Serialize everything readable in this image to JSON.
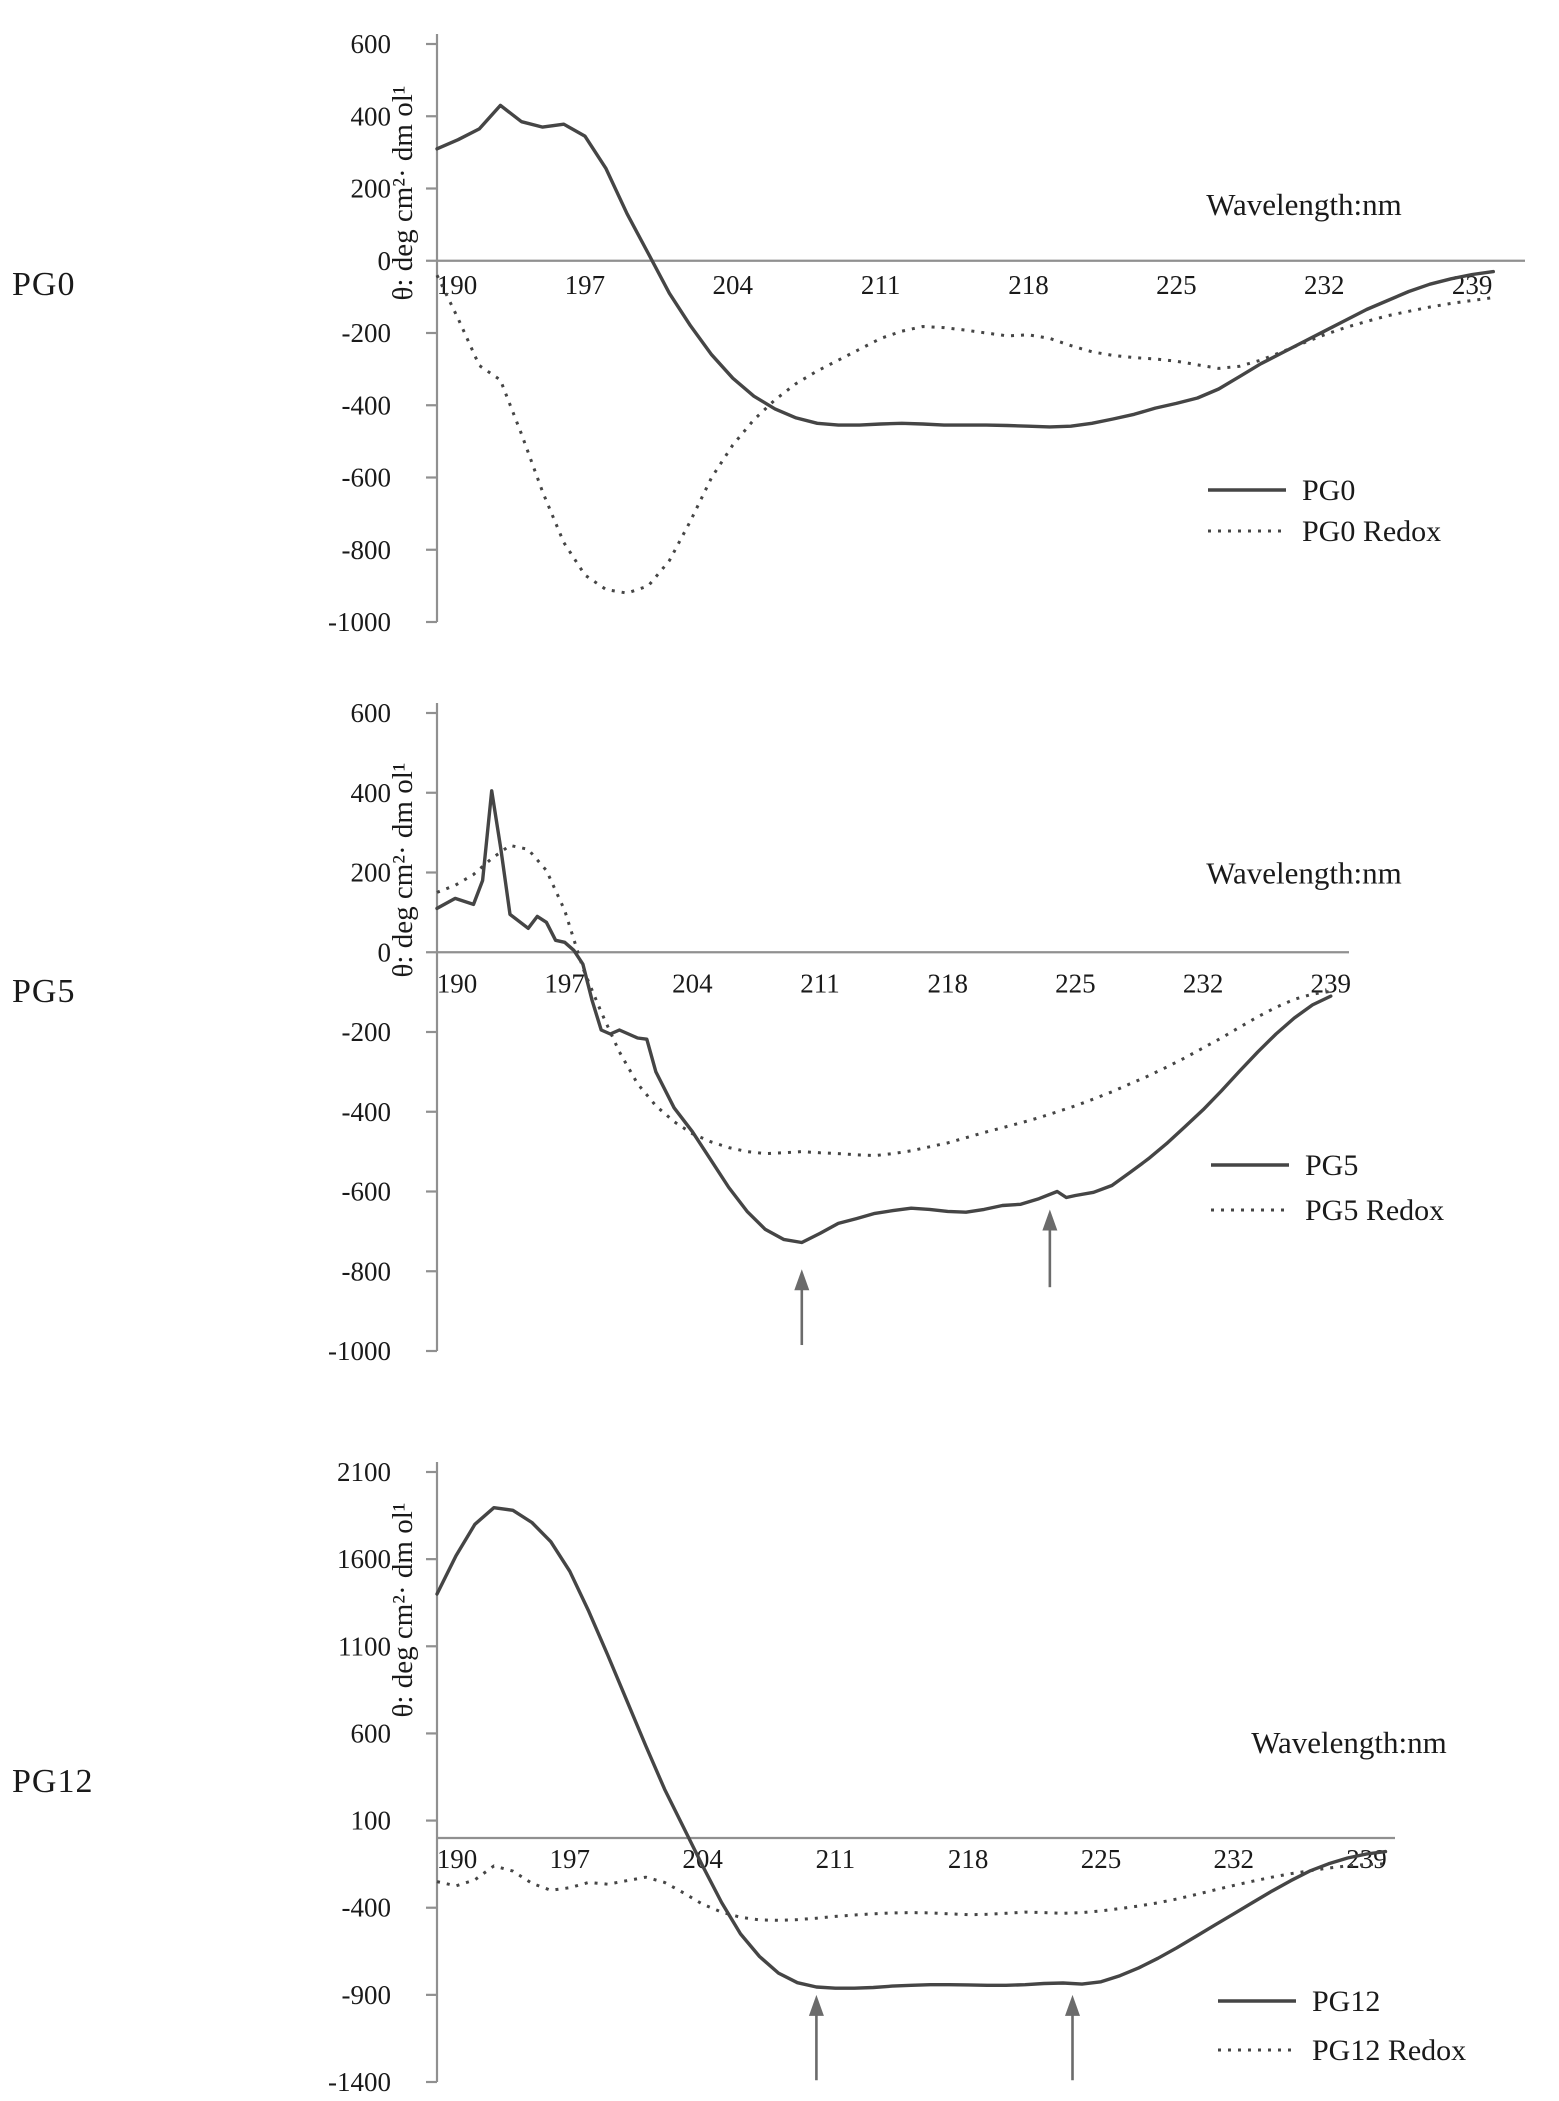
{
  "colors": {
    "line": "#454545",
    "axis": "#909090",
    "text": "#1a1a1a",
    "arrow": "#6b6b6b",
    "background": "#ffffff"
  },
  "chart_data": [
    {
      "type": "line",
      "row_label": "PG0",
      "xlabel": "Wavelength:nm",
      "ylabel": "θ: deg cm²· dm ol¹",
      "xlim": [
        190,
        241.5
      ],
      "ylim": [
        -1000,
        600
      ],
      "xticks": [
        190,
        197,
        204,
        211,
        218,
        225,
        232,
        239
      ],
      "yticks": [
        600,
        400,
        200,
        0,
        -200,
        -400,
        -600,
        -800,
        -1000
      ],
      "grid": false,
      "legend": {
        "entries": [
          "PG0",
          "PG0 Redox"
        ],
        "position": "right-middle"
      },
      "series": [
        {
          "name": "PG0",
          "style": "solid",
          "x": [
            190,
            191,
            192,
            193,
            194,
            195,
            196,
            197,
            198,
            199,
            200,
            201,
            202,
            203,
            204,
            205,
            206,
            207,
            208,
            209,
            210,
            211,
            212,
            213,
            214,
            215,
            216,
            217,
            218,
            219,
            220,
            221,
            222,
            223,
            224,
            225,
            226,
            227,
            228,
            229,
            230,
            231,
            232,
            233,
            234,
            235,
            236,
            237,
            238,
            239,
            240
          ],
          "y": [
            310,
            335,
            365,
            430,
            385,
            370,
            378,
            345,
            255,
            130,
            20,
            -90,
            -180,
            -260,
            -325,
            -375,
            -410,
            -435,
            -450,
            -455,
            -455,
            -452,
            -450,
            -452,
            -455,
            -455,
            -455,
            -456,
            -458,
            -460,
            -458,
            -450,
            -438,
            -425,
            -408,
            -395,
            -380,
            -355,
            -320,
            -285,
            -255,
            -225,
            -195,
            -165,
            -135,
            -110,
            -85,
            -65,
            -50,
            -38,
            -30
          ]
        },
        {
          "name": "PG0 Redox",
          "style": "dotted",
          "x": [
            190,
            191,
            192,
            193,
            194,
            195,
            196,
            197,
            198,
            199,
            200,
            201,
            202,
            203,
            204,
            205,
            206,
            207,
            208,
            209,
            210,
            211,
            212,
            213,
            214,
            215,
            216,
            217,
            218,
            219,
            220,
            221,
            222,
            223,
            224,
            225,
            226,
            227,
            228,
            229,
            230,
            231,
            232,
            233,
            234,
            235,
            236,
            237,
            238,
            239,
            240
          ],
          "y": [
            -40,
            -160,
            -290,
            -330,
            -480,
            -640,
            -780,
            -870,
            -910,
            -920,
            -900,
            -830,
            -720,
            -600,
            -510,
            -440,
            -385,
            -340,
            -305,
            -275,
            -245,
            -215,
            -195,
            -182,
            -185,
            -192,
            -200,
            -208,
            -205,
            -215,
            -235,
            -252,
            -262,
            -268,
            -272,
            -278,
            -288,
            -298,
            -292,
            -275,
            -252,
            -228,
            -205,
            -185,
            -168,
            -152,
            -140,
            -128,
            -118,
            -110,
            -102
          ]
        }
      ],
      "arrows": []
    },
    {
      "type": "line",
      "row_label": "PG5",
      "xlabel": "Wavelength:nm",
      "ylabel": "θ: deg cm²· dm ol¹",
      "xlim": [
        190,
        240
      ],
      "ylim": [
        -1000,
        600
      ],
      "xticks": [
        190,
        197,
        204,
        211,
        218,
        225,
        232,
        239
      ],
      "yticks": [
        600,
        400,
        200,
        0,
        -200,
        -400,
        -600,
        -800,
        -1000
      ],
      "grid": false,
      "legend": {
        "entries": [
          "PG5",
          "PG5 Redox"
        ],
        "position": "right-middle"
      },
      "series": [
        {
          "name": "PG5",
          "style": "solid",
          "x": [
            190,
            191,
            192,
            192.5,
            193,
            193.5,
            194,
            195,
            195.5,
            196,
            196.5,
            197,
            197.5,
            198,
            198.5,
            199,
            199.5,
            200,
            200.5,
            201,
            201.5,
            202,
            203,
            204,
            205,
            206,
            207,
            208,
            209,
            210,
            211,
            212,
            213,
            214,
            215,
            216,
            217,
            218,
            219,
            220,
            221,
            222,
            223,
            224,
            224.5,
            225,
            226,
            227,
            228,
            229,
            230,
            231,
            232,
            233,
            234,
            235,
            236,
            237,
            238,
            239
          ],
          "y": [
            110,
            135,
            120,
            180,
            405,
            260,
            95,
            60,
            90,
            75,
            30,
            25,
            5,
            -30,
            -120,
            -195,
            -205,
            -195,
            -205,
            -215,
            -218,
            -300,
            -390,
            -450,
            -520,
            -590,
            -650,
            -695,
            -720,
            -728,
            -705,
            -680,
            -668,
            -655,
            -648,
            -642,
            -645,
            -650,
            -652,
            -645,
            -635,
            -632,
            -618,
            -600,
            -615,
            -610,
            -602,
            -585,
            -552,
            -518,
            -480,
            -438,
            -395,
            -348,
            -298,
            -250,
            -205,
            -165,
            -132,
            -110
          ]
        },
        {
          "name": "PG5 Redox",
          "style": "dotted",
          "x": [
            190,
            191,
            192,
            193,
            194,
            195,
            196,
            197,
            198,
            199,
            200,
            201,
            202,
            203,
            204,
            205,
            206,
            207,
            208,
            209,
            210,
            211,
            212,
            213,
            214,
            215,
            216,
            217,
            218,
            219,
            220,
            221,
            222,
            223,
            224,
            225,
            226,
            227,
            228,
            229,
            230,
            231,
            232,
            233,
            234,
            235,
            236,
            237,
            238,
            239
          ],
          "y": [
            150,
            168,
            195,
            235,
            268,
            258,
            205,
            105,
            -40,
            -150,
            -250,
            -330,
            -385,
            -425,
            -455,
            -475,
            -490,
            -500,
            -505,
            -503,
            -500,
            -503,
            -505,
            -508,
            -510,
            -505,
            -498,
            -488,
            -478,
            -465,
            -452,
            -440,
            -428,
            -415,
            -400,
            -385,
            -368,
            -350,
            -330,
            -310,
            -288,
            -265,
            -240,
            -215,
            -188,
            -162,
            -138,
            -118,
            -105,
            -98
          ]
        }
      ],
      "arrows": [
        {
          "x": 210,
          "y_tip": -795,
          "y_tail": -985
        },
        {
          "x": 223.6,
          "y_tip": -645,
          "y_tail": -840
        }
      ]
    },
    {
      "type": "line",
      "row_label": "PG12",
      "xlabel": "Wavelength:nm",
      "ylabel": "θ: deg cm²· dm ol¹",
      "xlim": [
        190,
        240.5
      ],
      "ylim": [
        -1400,
        2100
      ],
      "xticks": [
        190,
        197,
        204,
        211,
        218,
        225,
        232,
        239
      ],
      "yticks": [
        2100,
        1600,
        1100,
        600,
        100,
        -400,
        -900,
        -1400
      ],
      "grid": false,
      "legend": {
        "entries": [
          "PG12",
          "PG12 Redox"
        ],
        "position": "right-bottom"
      },
      "series": [
        {
          "name": "PG12",
          "style": "solid",
          "x": [
            190,
            191,
            192,
            193,
            194,
            195,
            196,
            197,
            198,
            199,
            200,
            201,
            202,
            203,
            204,
            205,
            206,
            207,
            208,
            209,
            210,
            211,
            212,
            213,
            214,
            215,
            216,
            217,
            218,
            219,
            220,
            221,
            222,
            223,
            224,
            225,
            226,
            227,
            228,
            229,
            230,
            231,
            232,
            233,
            234,
            235,
            236,
            237,
            238,
            239,
            240
          ],
          "y": [
            1400,
            1620,
            1800,
            1895,
            1880,
            1810,
            1700,
            1530,
            1300,
            1050,
            790,
            530,
            280,
            60,
            -160,
            -370,
            -550,
            -680,
            -775,
            -830,
            -855,
            -862,
            -862,
            -858,
            -850,
            -845,
            -842,
            -842,
            -843,
            -845,
            -845,
            -842,
            -835,
            -832,
            -838,
            -825,
            -790,
            -745,
            -690,
            -630,
            -565,
            -500,
            -435,
            -370,
            -305,
            -245,
            -190,
            -148,
            -115,
            -92,
            -78
          ]
        },
        {
          "name": "PG12 Redox",
          "style": "dotted",
          "x": [
            190,
            191,
            192,
            193,
            194,
            195,
            196,
            197,
            198,
            199,
            200,
            201,
            202,
            203,
            204,
            205,
            206,
            207,
            208,
            209,
            210,
            211,
            212,
            213,
            214,
            215,
            216,
            217,
            218,
            219,
            220,
            221,
            222,
            223,
            224,
            225,
            226,
            227,
            228,
            229,
            230,
            231,
            232,
            233,
            234,
            235,
            236,
            237,
            238,
            239,
            240
          ],
          "y": [
            -250,
            -275,
            -240,
            -160,
            -190,
            -260,
            -300,
            -285,
            -255,
            -265,
            -245,
            -225,
            -255,
            -315,
            -380,
            -425,
            -455,
            -470,
            -472,
            -468,
            -460,
            -450,
            -442,
            -435,
            -430,
            -428,
            -430,
            -435,
            -440,
            -438,
            -432,
            -425,
            -428,
            -432,
            -428,
            -418,
            -405,
            -390,
            -372,
            -350,
            -325,
            -298,
            -272,
            -248,
            -225,
            -205,
            -188,
            -172,
            -160,
            -152,
            -148
          ]
        }
      ],
      "arrows": [
        {
          "x": 210,
          "y_tip": -900,
          "y_tail": -1390
        },
        {
          "x": 223.5,
          "y_tip": -900,
          "y_tail": -1390
        }
      ]
    }
  ]
}
